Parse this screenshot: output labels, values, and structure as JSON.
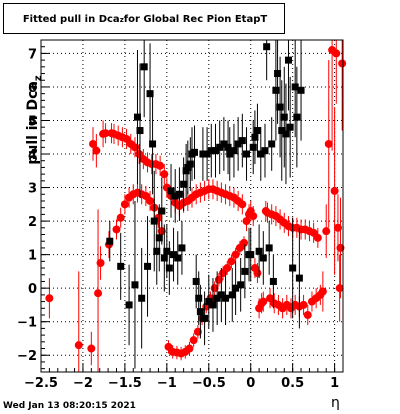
{
  "title": {
    "prefix": "Fitted pull in Dca",
    "sub": "z",
    "suffix": " for Global Rec Pion EtapT"
  },
  "ylabel": {
    "prefix": "pull in Dca",
    "sub": "z"
  },
  "xlabel": "η",
  "timestamp": "Wed Jan 13 08:20:15 2021",
  "colors": {
    "red": "#ff0000",
    "black": "#000000",
    "frame": "#000000"
  },
  "chart_data": {
    "type": "scatter",
    "xlim": [
      -2.5,
      1.1
    ],
    "ylim": [
      -2.5,
      7.4
    ],
    "xticks": [
      -2.5,
      -2,
      -1.5,
      -1,
      -0.5,
      0,
      0.5,
      1
    ],
    "xtick_labels": [
      "−2.5",
      "−2",
      "−1.5",
      "−1",
      "−0.5",
      "0",
      "0.5",
      "1"
    ],
    "yticks": [
      -2,
      -1,
      0,
      1,
      2,
      3,
      4,
      5,
      6,
      7
    ],
    "ytick_labels": [
      "−2",
      "−1",
      "0",
      "1",
      "2",
      "3",
      "4",
      "5",
      "6",
      "7"
    ],
    "grid": "dotted",
    "series": [
      {
        "color": "red",
        "marker": "circle",
        "points": [
          {
            "x": -2.4,
            "y": -0.3,
            "e": 0.6
          },
          {
            "x": -2.05,
            "y": -1.7,
            "e": 2.2
          },
          {
            "x": -1.9,
            "y": -1.8,
            "e": 0.5
          },
          {
            "x": -1.88,
            "y": 4.3,
            "e": 0.5
          },
          {
            "x": -1.84,
            "y": 4.1,
            "e": 0.5
          },
          {
            "x": -1.82,
            "y": -0.15,
            "e": 2.5
          },
          {
            "x": -1.79,
            "y": 0.75,
            "e": 0.5
          },
          {
            "x": -1.76,
            "y": 4.6,
            "e": 0.4
          },
          {
            "x": -1.73,
            "y": 4.62,
            "e": 0.3
          },
          {
            "x": -1.69,
            "y": 1.3,
            "e": 0.4
          },
          {
            "x": -1.66,
            "y": 4.62,
            "e": 0.3
          },
          {
            "x": -1.63,
            "y": 4.6,
            "e": 0.3
          },
          {
            "x": -1.6,
            "y": 1.75,
            "e": 0.3
          },
          {
            "x": -1.58,
            "y": 4.55,
            "e": 0.3
          },
          {
            "x": -1.55,
            "y": 2.1,
            "e": 0.3
          },
          {
            "x": -1.53,
            "y": 4.5,
            "e": 0.3
          },
          {
            "x": -1.5,
            "y": 2.5,
            "e": 0.3
          },
          {
            "x": -1.48,
            "y": 4.45,
            "e": 0.3
          },
          {
            "x": -1.45,
            "y": 2.7,
            "e": 0.3
          },
          {
            "x": -1.43,
            "y": 4.3,
            "e": 0.3
          },
          {
            "x": -1.4,
            "y": 2.8,
            "e": 0.3
          },
          {
            "x": -1.38,
            "y": 4.2,
            "e": 0.3
          },
          {
            "x": -1.35,
            "y": 2.85,
            "e": 0.3
          },
          {
            "x": -1.33,
            "y": 4.0,
            "e": 0.3
          },
          {
            "x": -1.3,
            "y": 2.8,
            "e": 0.3
          },
          {
            "x": -1.28,
            "y": 3.85,
            "e": 0.3
          },
          {
            "x": -1.25,
            "y": 2.75,
            "e": 0.3
          },
          {
            "x": -1.23,
            "y": 3.75,
            "e": 0.3
          },
          {
            "x": -1.2,
            "y": 2.6,
            "e": 0.3
          },
          {
            "x": -1.18,
            "y": 3.7,
            "e": 0.3
          },
          {
            "x": -1.15,
            "y": 2.4,
            "e": 0.3
          },
          {
            "x": -1.13,
            "y": 3.7,
            "e": 0.3
          },
          {
            "x": -1.1,
            "y": 2.1,
            "e": 0.3
          },
          {
            "x": -1.08,
            "y": 3.65,
            "e": 0.3
          },
          {
            "x": -1.06,
            "y": 1.7,
            "e": 0.3
          },
          {
            "x": -1.03,
            "y": 3.4,
            "e": 0.3
          },
          {
            "x": -1.0,
            "y": 3.0,
            "e": 0.3
          },
          {
            "x": -0.98,
            "y": -1.75,
            "e": 0.2
          },
          {
            "x": -0.95,
            "y": 2.75,
            "e": 0.3
          },
          {
            "x": -0.93,
            "y": -1.9,
            "e": 0.2
          },
          {
            "x": -0.9,
            "y": 2.55,
            "e": 0.3
          },
          {
            "x": -0.88,
            "y": -1.92,
            "e": 0.2
          },
          {
            "x": -0.85,
            "y": 2.45,
            "e": 0.3
          },
          {
            "x": -0.83,
            "y": -1.95,
            "e": 0.2
          },
          {
            "x": -0.8,
            "y": 2.55,
            "e": 0.3
          },
          {
            "x": -0.78,
            "y": -1.9,
            "e": 0.2
          },
          {
            "x": -0.75,
            "y": 2.6,
            "e": 0.3
          },
          {
            "x": -0.73,
            "y": -1.8,
            "e": 0.2
          },
          {
            "x": -0.7,
            "y": 2.7,
            "e": 0.3
          },
          {
            "x": -0.68,
            "y": -1.55,
            "e": 0.2
          },
          {
            "x": -0.65,
            "y": 2.8,
            "e": 0.3
          },
          {
            "x": -0.63,
            "y": -1.3,
            "e": 0.2
          },
          {
            "x": -0.6,
            "y": 2.85,
            "e": 0.3
          },
          {
            "x": -0.58,
            "y": -0.9,
            "e": 0.2
          },
          {
            "x": -0.55,
            "y": 2.9,
            "e": 0.3
          },
          {
            "x": -0.53,
            "y": -0.55,
            "e": 0.2
          },
          {
            "x": -0.5,
            "y": 2.95,
            "e": 0.3
          },
          {
            "x": -0.48,
            "y": -0.3,
            "e": 0.2
          },
          {
            "x": -0.45,
            "y": 2.95,
            "e": 0.3
          },
          {
            "x": -0.43,
            "y": 0.0,
            "e": 0.2
          },
          {
            "x": -0.4,
            "y": 2.9,
            "e": 0.3
          },
          {
            "x": -0.38,
            "y": 0.25,
            "e": 0.2
          },
          {
            "x": -0.35,
            "y": 2.85,
            "e": 0.3
          },
          {
            "x": -0.33,
            "y": 0.45,
            "e": 0.2
          },
          {
            "x": -0.3,
            "y": 2.8,
            "e": 0.3
          },
          {
            "x": -0.28,
            "y": 0.6,
            "e": 0.2
          },
          {
            "x": -0.25,
            "y": 2.75,
            "e": 0.3
          },
          {
            "x": -0.23,
            "y": 0.8,
            "e": 0.2
          },
          {
            "x": -0.2,
            "y": 2.7,
            "e": 0.3
          },
          {
            "x": -0.18,
            "y": 1.0,
            "e": 0.2
          },
          {
            "x": -0.15,
            "y": 2.6,
            "e": 0.3
          },
          {
            "x": -0.13,
            "y": 1.2,
            "e": 0.2
          },
          {
            "x": -0.1,
            "y": 2.5,
            "e": 0.3
          },
          {
            "x": -0.08,
            "y": 1.35,
            "e": 0.2
          },
          {
            "x": -0.05,
            "y": 2.0,
            "e": 0.3
          },
          {
            "x": -0.02,
            "y": 2.2,
            "e": 0.3
          },
          {
            "x": 0.0,
            "y": 2.3,
            "e": 0.3
          },
          {
            "x": 0.03,
            "y": 2.15,
            "e": 0.3
          },
          {
            "x": 0.05,
            "y": 0.6,
            "e": 0.3
          },
          {
            "x": 0.08,
            "y": 0.45,
            "e": 0.3
          },
          {
            "x": 0.1,
            "y": -0.6,
            "e": 0.3
          },
          {
            "x": 0.13,
            "y": -0.45,
            "e": 0.3
          },
          {
            "x": 0.15,
            "y": -0.4,
            "e": 0.3
          },
          {
            "x": 0.18,
            "y": 2.3,
            "e": 0.3
          },
          {
            "x": 0.2,
            "y": 2.25,
            "e": 0.3
          },
          {
            "x": 0.23,
            "y": -0.3,
            "e": 0.3
          },
          {
            "x": 0.25,
            "y": 2.2,
            "e": 0.3
          },
          {
            "x": 0.28,
            "y": -0.45,
            "e": 0.3
          },
          {
            "x": 0.3,
            "y": 2.15,
            "e": 0.3
          },
          {
            "x": 0.33,
            "y": -0.5,
            "e": 0.3
          },
          {
            "x": 0.35,
            "y": 2.05,
            "e": 0.3
          },
          {
            "x": 0.38,
            "y": -0.6,
            "e": 0.3
          },
          {
            "x": 0.4,
            "y": 1.95,
            "e": 0.3
          },
          {
            "x": 0.43,
            "y": -0.5,
            "e": 0.3
          },
          {
            "x": 0.45,
            "y": 1.85,
            "e": 0.3
          },
          {
            "x": 0.48,
            "y": -0.6,
            "e": 0.3
          },
          {
            "x": 0.5,
            "y": 1.8,
            "e": 0.3
          },
          {
            "x": 0.53,
            "y": -0.5,
            "e": 0.3
          },
          {
            "x": 0.55,
            "y": 1.8,
            "e": 0.3
          },
          {
            "x": 0.58,
            "y": -0.55,
            "e": 0.3
          },
          {
            "x": 0.6,
            "y": 1.75,
            "e": 0.3
          },
          {
            "x": 0.63,
            "y": -0.5,
            "e": 0.3
          },
          {
            "x": 0.65,
            "y": 1.75,
            "e": 0.3
          },
          {
            "x": 0.68,
            "y": -0.8,
            "e": 0.3
          },
          {
            "x": 0.7,
            "y": 1.7,
            "e": 0.3
          },
          {
            "x": 0.73,
            "y": -0.4,
            "e": 0.3
          },
          {
            "x": 0.75,
            "y": 1.65,
            "e": 0.3
          },
          {
            "x": 0.78,
            "y": -0.3,
            "e": 0.3
          },
          {
            "x": 0.8,
            "y": 1.5,
            "e": 0.3
          },
          {
            "x": 0.83,
            "y": -0.2,
            "e": 0.3
          },
          {
            "x": 0.86,
            "y": -0.1,
            "e": 0.6
          },
          {
            "x": 0.9,
            "y": 1.7,
            "e": 0.8
          },
          {
            "x": 0.93,
            "y": 4.3,
            "e": 2.5
          },
          {
            "x": 0.97,
            "y": 7.1,
            "e": 3.0
          },
          {
            "x": 1.0,
            "y": 2.9,
            "e": 2.5
          },
          {
            "x": 1.02,
            "y": 7.0,
            "e": 1.5
          },
          {
            "x": 1.04,
            "y": 1.8,
            "e": 1.0
          },
          {
            "x": 1.06,
            "y": 0.0,
            "e": 1.0
          },
          {
            "x": 1.07,
            "y": 1.2,
            "e": 1.5
          },
          {
            "x": 1.09,
            "y": 6.7,
            "e": 2.0
          }
        ]
      },
      {
        "color": "black",
        "marker": "square",
        "points": [
          {
            "x": -1.68,
            "y": 1.4,
            "e": 0.6
          },
          {
            "x": -1.55,
            "y": 0.65,
            "e": 1.0
          },
          {
            "x": -1.45,
            "y": -0.5,
            "e": 1.2
          },
          {
            "x": -1.38,
            "y": 0.1,
            "e": 2.5
          },
          {
            "x": -1.35,
            "y": 5.1,
            "e": 2.0
          },
          {
            "x": -1.32,
            "y": 4.7,
            "e": 2.0
          },
          {
            "x": -1.3,
            "y": -0.3,
            "e": 1.5
          },
          {
            "x": -1.27,
            "y": 6.6,
            "e": 1.5
          },
          {
            "x": -1.23,
            "y": 0.65,
            "e": 1.5
          },
          {
            "x": -1.2,
            "y": 5.8,
            "e": 1.5
          },
          {
            "x": -1.17,
            "y": 4.3,
            "e": 1.5
          },
          {
            "x": -1.15,
            "y": 2.0,
            "e": 1.5
          },
          {
            "x": -1.12,
            "y": 1.1,
            "e": 1.0
          },
          {
            "x": -1.09,
            "y": 1.5,
            "e": 1.0
          },
          {
            "x": -1.06,
            "y": 2.3,
            "e": 1.0
          },
          {
            "x": -1.03,
            "y": 0.9,
            "e": 1.0
          },
          {
            "x": -1.0,
            "y": 1.1,
            "e": 0.8
          },
          {
            "x": -0.97,
            "y": 0.6,
            "e": 0.8
          },
          {
            "x": -0.95,
            "y": 2.9,
            "e": 0.8
          },
          {
            "x": -0.92,
            "y": 1.0,
            "e": 0.8
          },
          {
            "x": -0.9,
            "y": 2.75,
            "e": 0.8
          },
          {
            "x": -0.87,
            "y": 0.9,
            "e": 0.8
          },
          {
            "x": -0.85,
            "y": 2.8,
            "e": 0.8
          },
          {
            "x": -0.82,
            "y": 1.2,
            "e": 0.8
          },
          {
            "x": -0.8,
            "y": 3.1,
            "e": 0.8
          },
          {
            "x": -0.77,
            "y": 3.5,
            "e": 0.8
          },
          {
            "x": -0.75,
            "y": 3.6,
            "e": 0.8
          },
          {
            "x": -0.72,
            "y": 3.7,
            "e": 0.8
          },
          {
            "x": -0.7,
            "y": 4.0,
            "e": 0.8
          },
          {
            "x": -0.67,
            "y": 4.05,
            "e": 0.8
          },
          {
            "x": -0.65,
            "y": 0.2,
            "e": 0.8
          },
          {
            "x": -0.62,
            "y": -0.3,
            "e": 0.8
          },
          {
            "x": -0.6,
            "y": -0.7,
            "e": 0.8
          },
          {
            "x": -0.57,
            "y": 4.0,
            "e": 0.8
          },
          {
            "x": -0.55,
            "y": -0.9,
            "e": 0.8
          },
          {
            "x": -0.52,
            "y": 4.0,
            "e": 0.8
          },
          {
            "x": -0.5,
            "y": -0.4,
            "e": 0.8
          },
          {
            "x": -0.47,
            "y": 4.1,
            "e": 0.8
          },
          {
            "x": -0.45,
            "y": -0.5,
            "e": 0.8
          },
          {
            "x": -0.42,
            "y": 4.1,
            "e": 0.8
          },
          {
            "x": -0.4,
            "y": -0.3,
            "e": 0.8
          },
          {
            "x": -0.37,
            "y": 4.2,
            "e": 0.8
          },
          {
            "x": -0.35,
            "y": -0.2,
            "e": 0.8
          },
          {
            "x": -0.32,
            "y": 4.3,
            "e": 0.8
          },
          {
            "x": -0.3,
            "y": -0.3,
            "e": 0.8
          },
          {
            "x": -0.27,
            "y": 4.2,
            "e": 0.8
          },
          {
            "x": -0.25,
            "y": 4.0,
            "e": 0.8
          },
          {
            "x": -0.22,
            "y": -0.2,
            "e": 0.8
          },
          {
            "x": -0.2,
            "y": 4.1,
            "e": 0.8
          },
          {
            "x": -0.18,
            "y": 0.0,
            "e": 0.8
          },
          {
            "x": -0.15,
            "y": 4.3,
            "e": 0.8
          },
          {
            "x": -0.12,
            "y": 0.1,
            "e": 0.8
          },
          {
            "x": -0.1,
            "y": 4.4,
            "e": 0.8
          },
          {
            "x": -0.07,
            "y": 0.5,
            "e": 0.8
          },
          {
            "x": -0.05,
            "y": 4.0,
            "e": 0.8
          },
          {
            "x": -0.02,
            "y": 1.0,
            "e": 0.8
          },
          {
            "x": 0.0,
            "y": 1.0,
            "e": 0.8
          },
          {
            "x": 0.03,
            "y": 4.2,
            "e": 0.8
          },
          {
            "x": 0.05,
            "y": 4.5,
            "e": 0.8
          },
          {
            "x": 0.08,
            "y": 4.7,
            "e": 0.8
          },
          {
            "x": 0.1,
            "y": 1.1,
            "e": 0.8
          },
          {
            "x": 0.12,
            "y": 4.0,
            "e": 0.8
          },
          {
            "x": 0.15,
            "y": 0.9,
            "e": 0.8
          },
          {
            "x": 0.17,
            "y": 4.1,
            "e": 0.8
          },
          {
            "x": 0.19,
            "y": 7.2,
            "e": 1.0
          },
          {
            "x": 0.22,
            "y": 1.2,
            "e": 0.8
          },
          {
            "x": 0.25,
            "y": 4.3,
            "e": 0.8
          },
          {
            "x": 0.27,
            "y": 0.2,
            "e": 0.8
          },
          {
            "x": 0.3,
            "y": 5.9,
            "e": 1.5
          },
          {
            "x": 0.32,
            "y": 6.4,
            "e": 1.5
          },
          {
            "x": 0.35,
            "y": 5.4,
            "e": 1.5
          },
          {
            "x": 0.37,
            "y": 4.7,
            "e": 1.5
          },
          {
            "x": 0.4,
            "y": 5.1,
            "e": 1.5
          },
          {
            "x": 0.42,
            "y": 4.6,
            "e": 1.5
          },
          {
            "x": 0.45,
            "y": 6.8,
            "e": 1.5
          },
          {
            "x": 0.47,
            "y": 4.8,
            "e": 1.5
          },
          {
            "x": 0.5,
            "y": 0.6,
            "e": 1.5
          },
          {
            "x": 0.53,
            "y": 6.0,
            "e": 1.5
          },
          {
            "x": 0.55,
            "y": 5.1,
            "e": 1.5
          },
          {
            "x": 0.58,
            "y": 0.3,
            "e": 1.5
          },
          {
            "x": 0.6,
            "y": 5.9,
            "e": 1.5
          }
        ]
      }
    ]
  }
}
